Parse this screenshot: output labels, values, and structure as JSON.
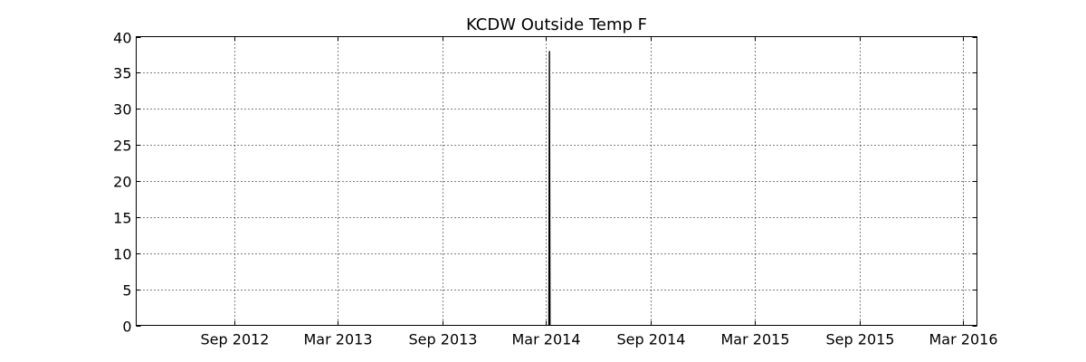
{
  "chart_data": {
    "type": "line",
    "title": "KCDW Outside Temp F",
    "xlabel": "",
    "ylabel": "",
    "x_type": "date",
    "xlim": [
      "2012-03-13",
      "2016-03-25"
    ],
    "ylim": [
      0,
      40
    ],
    "y_ticks": [
      0,
      5,
      10,
      15,
      20,
      25,
      30,
      35,
      40
    ],
    "x_ticks": [
      {
        "date": "2012-09-01",
        "label": "Sep 2012"
      },
      {
        "date": "2013-03-01",
        "label": "Mar 2013"
      },
      {
        "date": "2013-09-01",
        "label": "Sep 2013"
      },
      {
        "date": "2014-03-01",
        "label": "Mar 2014"
      },
      {
        "date": "2014-09-01",
        "label": "Sep 2014"
      },
      {
        "date": "2015-03-01",
        "label": "Mar 2015"
      },
      {
        "date": "2015-09-01",
        "label": "Sep 2015"
      },
      {
        "date": "2016-03-01",
        "label": "Mar 2016"
      }
    ],
    "grid": true,
    "series": [
      {
        "color": "#000000",
        "points": [
          {
            "x": "2014-03-06",
            "y": 0
          },
          {
            "x": "2014-03-07",
            "y": 38
          },
          {
            "x": "2014-03-08",
            "y": 0
          }
        ]
      }
    ]
  }
}
